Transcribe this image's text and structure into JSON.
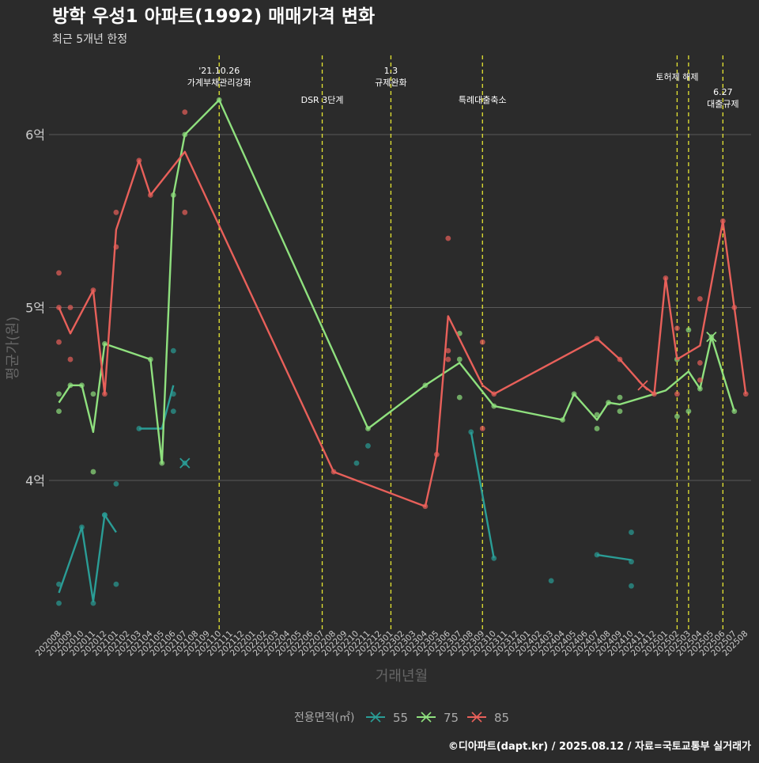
{
  "title": "방학 우성1 아파트(1992) 매매가격 변화",
  "subtitle": "최근 5개년 한정",
  "caption": "©디아파트(dapt.kr) / 2025.08.12 / 자료=국토교통부 실거래가",
  "chart_data": {
    "type": "line",
    "xlabel": "거래년월",
    "ylabel": "평균가(원)",
    "legend_title": "전용면적(㎡)",
    "legend_position": "bottom",
    "grid": true,
    "x_categories": [
      "202008",
      "202009",
      "202010",
      "202011",
      "202012",
      "202101",
      "202102",
      "202103",
      "202104",
      "202105",
      "202106",
      "202107",
      "202108",
      "202109",
      "202110",
      "202111",
      "202112",
      "202201",
      "202202",
      "202203",
      "202204",
      "202205",
      "202206",
      "202207",
      "202208",
      "202209",
      "202210",
      "202211",
      "202212",
      "202301",
      "202302",
      "202303",
      "202304",
      "202305",
      "202306",
      "202307",
      "202308",
      "202309",
      "202310",
      "202311",
      "202312",
      "202401",
      "202402",
      "202403",
      "202404",
      "202405",
      "202406",
      "202407",
      "202408",
      "202409",
      "202410",
      "202411",
      "202412",
      "202501",
      "202502",
      "202503",
      "202504",
      "202505",
      "202506",
      "202507",
      "202508"
    ],
    "y_ticks": [
      {
        "value": 4.0,
        "label": "4억"
      },
      {
        "value": 5.0,
        "label": "5억"
      },
      {
        "value": 6.0,
        "label": "6억"
      }
    ],
    "ylim": [
      3.2,
      6.9
    ],
    "events": [
      {
        "x": "202110",
        "lines": [
          "'21.10.26",
          "가계부채관리강화"
        ],
        "level": 0
      },
      {
        "x": "202207",
        "lines": [
          "DSR 3단계"
        ],
        "level": 2
      },
      {
        "x": "202301",
        "lines": [
          "1.3",
          "규제완화"
        ],
        "level": 0
      },
      {
        "x": "202309",
        "lines": [
          "특례대출축소"
        ],
        "level": 2
      },
      {
        "x": "202502",
        "lines": [
          "토허제 해제"
        ],
        "level": 1
      },
      {
        "x": "202503",
        "lines": [],
        "level": 1
      },
      {
        "x": "202506",
        "lines": [
          "6.27",
          "대출규제"
        ],
        "level": 3
      }
    ],
    "series": [
      {
        "name": "55",
        "color": "#2a9d96",
        "segments": [
          [
            [
              "202008",
              3.35
            ],
            [
              "202010",
              3.73
            ],
            [
              "202011",
              3.3
            ],
            [
              "202012",
              3.8
            ],
            [
              "202101",
              3.7
            ]
          ],
          [
            [
              "202103",
              4.3
            ],
            [
              "202105",
              4.3
            ],
            [
              "202106",
              4.55
            ]
          ],
          [
            [
              "202308",
              4.28
            ],
            [
              "202310",
              3.55
            ]
          ],
          [
            [
              "202407",
              3.57
            ],
            [
              "202410",
              3.54
            ]
          ]
        ],
        "points": [
          [
            "202008",
            3.4
          ],
          [
            "202008",
            3.29
          ],
          [
            "202010",
            3.73
          ],
          [
            "202011",
            3.29
          ],
          [
            "202012",
            3.8
          ],
          [
            "202012",
            3.8
          ],
          [
            "202101",
            3.98
          ],
          [
            "202101",
            3.4
          ],
          [
            "202103",
            4.3
          ],
          [
            "202106",
            4.5
          ],
          [
            "202106",
            4.4
          ],
          [
            "202106",
            4.75
          ],
          [
            "202107",
            4.1
          ],
          [
            "202211",
            4.2
          ],
          [
            "202210",
            4.1
          ],
          [
            "202308",
            4.28
          ],
          [
            "202310",
            3.55
          ],
          [
            "202403",
            3.42
          ],
          [
            "202407",
            3.57
          ],
          [
            "202410",
            3.53
          ],
          [
            "202410",
            3.7
          ],
          [
            "202410",
            3.39
          ]
        ],
        "cross": [
          "202107",
          4.1
        ]
      },
      {
        "name": "75",
        "color": "#8fe07e",
        "segments": [
          [
            [
              "202008",
              4.45
            ],
            [
              "202009",
              4.55
            ],
            [
              "202010",
              4.55
            ],
            [
              "202011",
              4.28
            ],
            [
              "202012",
              4.79
            ],
            [
              "202104",
              4.7
            ],
            [
              "202105",
              4.1
            ],
            [
              "202106",
              5.65
            ],
            [
              "202107",
              6.0
            ],
            [
              "202110",
              6.2
            ],
            [
              "202211",
              4.3
            ],
            [
              "202304",
              4.55
            ],
            [
              "202307",
              4.68
            ],
            [
              "202310",
              4.43
            ],
            [
              "202404",
              4.35
            ],
            [
              "202405",
              4.5
            ],
            [
              "202407",
              4.35
            ],
            [
              "202408",
              4.45
            ],
            [
              "202409",
              4.44
            ],
            [
              "202412",
              4.5
            ],
            [
              "202501",
              4.52
            ],
            [
              "202503",
              4.63
            ],
            [
              "202504",
              4.53
            ],
            [
              "202505",
              4.83
            ],
            [
              "202507",
              4.4
            ]
          ]
        ],
        "points": [
          [
            "202008",
            4.5
          ],
          [
            "202008",
            4.4
          ],
          [
            "202009",
            4.55
          ],
          [
            "202010",
            4.55
          ],
          [
            "202011",
            4.5
          ],
          [
            "202011",
            4.05
          ],
          [
            "202012",
            4.79
          ],
          [
            "202104",
            4.7
          ],
          [
            "202105",
            4.1
          ],
          [
            "202106",
            5.65
          ],
          [
            "202107",
            6.0
          ],
          [
            "202110",
            6.2
          ],
          [
            "202211",
            4.3
          ],
          [
            "202304",
            4.55
          ],
          [
            "202307",
            4.85
          ],
          [
            "202307",
            4.7
          ],
          [
            "202307",
            4.48
          ],
          [
            "202310",
            4.43
          ],
          [
            "202404",
            4.35
          ],
          [
            "202405",
            4.5
          ],
          [
            "202407",
            4.3
          ],
          [
            "202407",
            4.38
          ],
          [
            "202408",
            4.45
          ],
          [
            "202409",
            4.4
          ],
          [
            "202409",
            4.48
          ],
          [
            "202502",
            4.7
          ],
          [
            "202502",
            4.37
          ],
          [
            "202503",
            4.87
          ],
          [
            "202503",
            4.4
          ],
          [
            "202504",
            4.53
          ],
          [
            "202505",
            4.83
          ],
          [
            "202507",
            4.4
          ]
        ],
        "cross": [
          "202505",
          4.83
        ]
      },
      {
        "name": "85",
        "color": "#e8605a",
        "segments": [
          [
            [
              "202008",
              5.0
            ],
            [
              "202009",
              4.85
            ],
            [
              "202011",
              5.1
            ],
            [
              "202012",
              4.5
            ],
            [
              "202101",
              5.45
            ],
            [
              "202103",
              5.85
            ],
            [
              "202104",
              5.65
            ],
            [
              "202107",
              5.9
            ],
            [
              "202208",
              4.05
            ],
            [
              "202304",
              3.85
            ],
            [
              "202305",
              4.15
            ],
            [
              "202306",
              4.95
            ],
            [
              "202309",
              4.55
            ],
            [
              "202310",
              4.5
            ],
            [
              "202407",
              4.82
            ],
            [
              "202409",
              4.7
            ],
            [
              "202411",
              4.55
            ],
            [
              "202412",
              4.5
            ],
            [
              "202501",
              5.17
            ],
            [
              "202502",
              4.7
            ],
            [
              "202504",
              4.78
            ],
            [
              "202506",
              5.5
            ],
            [
              "202507",
              5.0
            ],
            [
              "202508",
              4.5
            ]
          ]
        ],
        "points": [
          [
            "202008",
            5.2
          ],
          [
            "202008",
            4.8
          ],
          [
            "202008",
            5.0
          ],
          [
            "202009",
            5.0
          ],
          [
            "202009",
            4.7
          ],
          [
            "202011",
            5.1
          ],
          [
            "202012",
            4.5
          ],
          [
            "202101",
            5.55
          ],
          [
            "202101",
            5.35
          ],
          [
            "202103",
            5.85
          ],
          [
            "202104",
            5.65
          ],
          [
            "202107",
            6.13
          ],
          [
            "202107",
            5.55
          ],
          [
            "202208",
            4.05
          ],
          [
            "202304",
            3.85
          ],
          [
            "202305",
            4.15
          ],
          [
            "202306",
            5.4
          ],
          [
            "202306",
            4.75
          ],
          [
            "202306",
            4.7
          ],
          [
            "202309",
            4.8
          ],
          [
            "202309",
            4.3
          ],
          [
            "202310",
            4.5
          ],
          [
            "202407",
            4.82
          ],
          [
            "202409",
            4.7
          ],
          [
            "202412",
            4.5
          ],
          [
            "202501",
            5.17
          ],
          [
            "202502",
            4.88
          ],
          [
            "202502",
            4.5
          ],
          [
            "202504",
            5.05
          ],
          [
            "202504",
            4.68
          ],
          [
            "202504",
            4.58
          ],
          [
            "202506",
            5.5
          ],
          [
            "202507",
            5.0
          ],
          [
            "202508",
            4.5
          ]
        ],
        "cross": [
          "202411",
          4.55
        ]
      }
    ]
  }
}
